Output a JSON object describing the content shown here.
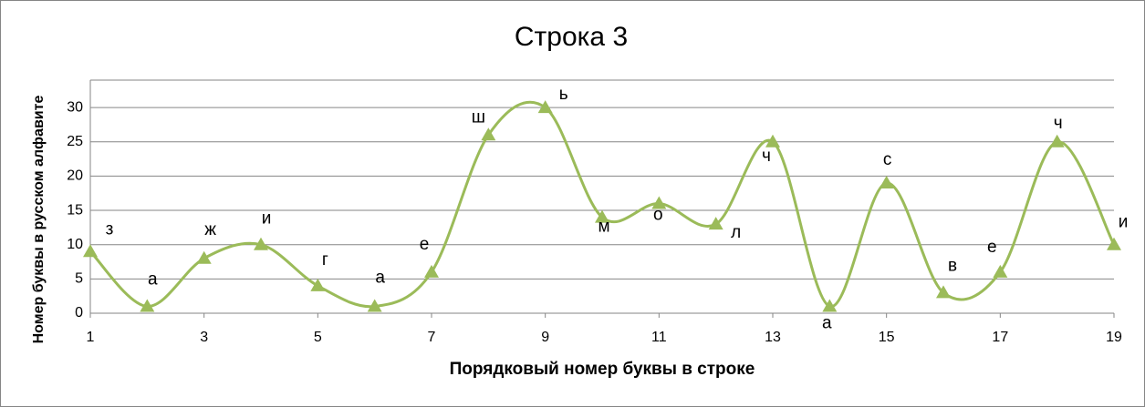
{
  "chart_data": {
    "type": "line",
    "title": "Строка 3",
    "x_label": "Порядковый номер буквы в строке",
    "y_label": "Номер буквы в русском алфавите",
    "x": [
      1,
      2,
      3,
      4,
      5,
      6,
      7,
      8,
      9,
      10,
      11,
      12,
      13,
      14,
      15,
      16,
      17,
      18,
      19
    ],
    "series": [
      {
        "name": "Строка 3",
        "color": "#9bbb59",
        "values": [
          9,
          1,
          8,
          10,
          4,
          1,
          6,
          26,
          30,
          14,
          16,
          13,
          25,
          1,
          19,
          3,
          6,
          25,
          10
        ],
        "labels": [
          "з",
          "а",
          "ж",
          "и",
          "г",
          "а",
          "е",
          "ш",
          "ь",
          "м",
          "о",
          "л",
          "ч",
          "а",
          "с",
          "в",
          "е",
          "ч",
          "и"
        ]
      }
    ],
    "xlim": [
      1,
      19
    ],
    "xticks": [
      1,
      3,
      5,
      7,
      9,
      11,
      13,
      15,
      17,
      19
    ],
    "ylim": [
      0,
      34
    ],
    "yticks": [
      0,
      5,
      10,
      15,
      20,
      25,
      30
    ],
    "grid": true,
    "smooth": true,
    "marker": "triangle"
  }
}
